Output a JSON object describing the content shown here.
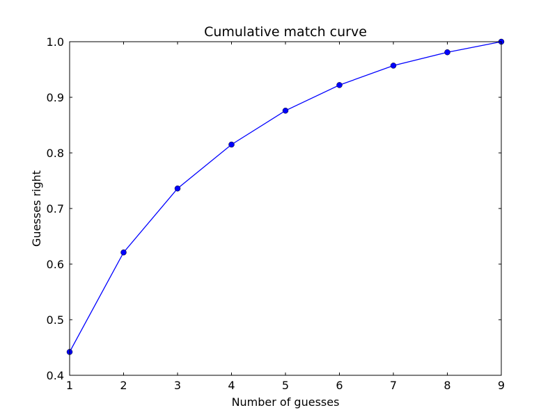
{
  "chart_data": {
    "type": "line",
    "title": "Cumulative match curve",
    "xlabel": "Number of guesses",
    "ylabel": "Guesses right",
    "x": [
      1,
      2,
      3,
      4,
      5,
      6,
      7,
      8,
      9
    ],
    "series": [
      {
        "values": [
          0.442,
          0.621,
          0.736,
          0.815,
          0.876,
          0.922,
          0.957,
          0.981,
          1.0
        ],
        "color": "#0000ff",
        "marker": "circle"
      }
    ],
    "xlim": [
      1,
      9
    ],
    "ylim": [
      0.4,
      1.0
    ],
    "xticks": [
      "1",
      "2",
      "3",
      "4",
      "5",
      "6",
      "7",
      "8",
      "9"
    ],
    "yticks": [
      "0.4",
      "0.5",
      "0.6",
      "0.7",
      "0.8",
      "0.9",
      "1.0"
    ],
    "grid": false,
    "legend": "none"
  }
}
